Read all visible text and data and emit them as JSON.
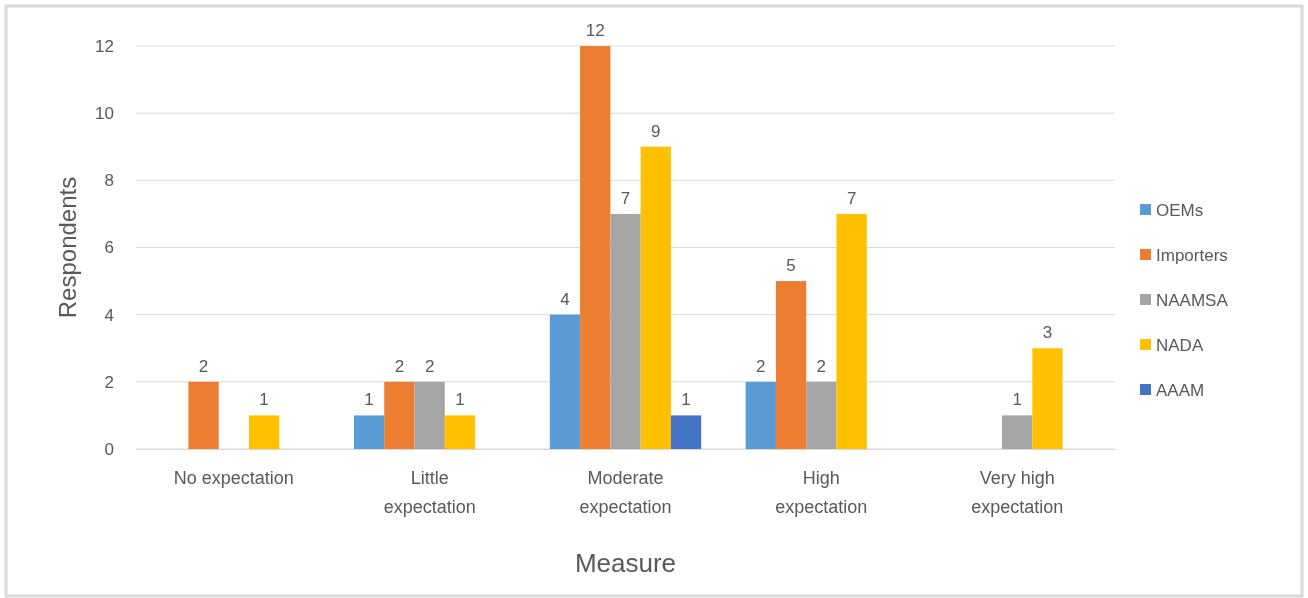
{
  "chart_data": {
    "type": "bar",
    "xlabel": "Measure",
    "ylabel": "Respondents",
    "categories": [
      "No expectation",
      "Little expectation",
      "Moderate expectation",
      "High expectation",
      "Very high expectation"
    ],
    "series": [
      {
        "name": "OEMs",
        "color": "#5b9bd5",
        "values": [
          null,
          1,
          4,
          2,
          null
        ]
      },
      {
        "name": "Importers",
        "color": "#ed7d31",
        "values": [
          2,
          2,
          12,
          5,
          null
        ]
      },
      {
        "name": "NAAMSA",
        "color": "#a5a5a5",
        "values": [
          null,
          2,
          7,
          2,
          1
        ]
      },
      {
        "name": "NADA",
        "color": "#ffc000",
        "values": [
          1,
          1,
          9,
          7,
          3
        ]
      },
      {
        "name": "AAAM",
        "color": "#4472c4",
        "values": [
          null,
          null,
          1,
          null,
          null
        ]
      }
    ],
    "ylim": [
      0,
      12
    ],
    "yticks": [
      0,
      2,
      4,
      6,
      8,
      10,
      12
    ],
    "grid": "y",
    "legend": "right",
    "data_labels": true
  }
}
